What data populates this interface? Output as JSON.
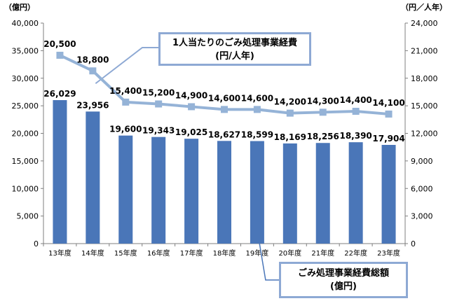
{
  "chart_data": {
    "type": "bar",
    "categories": [
      "13年度",
      "14年度",
      "15年度",
      "16年度",
      "17年度",
      "18年度",
      "19年度",
      "20年度",
      "21年度",
      "22年度",
      "23年度"
    ],
    "series": [
      {
        "name": "ごみ処理事業経費総額(億円)",
        "type": "bar",
        "axis": "left",
        "values": [
          26029,
          23956,
          19600,
          19343,
          19025,
          18627,
          18599,
          18169,
          18256,
          18390,
          17904
        ],
        "value_labels": [
          "26,029",
          "23,956",
          "19,600",
          "19,343",
          "19,025",
          "18,627",
          "18,599",
          "18,169",
          "18,256",
          "18,390",
          "17,904"
        ],
        "color": "#4A76B8"
      },
      {
        "name": "1人当たりのごみ処理事業経費(円/人年)",
        "type": "line",
        "axis": "right",
        "values": [
          20500,
          18800,
          15400,
          15200,
          14900,
          14600,
          14600,
          14200,
          14300,
          14400,
          14100
        ],
        "value_labels": [
          "20,500",
          "18,800",
          "15,400",
          "15,200",
          "14,900",
          "14,600",
          "14,600",
          "14,200",
          "14,300",
          "14,400",
          "14,100"
        ],
        "color": "#95B3D7"
      }
    ],
    "y_left": {
      "unit": "（億円）",
      "ylim": [
        0,
        40000
      ],
      "ticks": [
        0,
        5000,
        10000,
        15000,
        20000,
        25000,
        30000,
        35000,
        40000
      ],
      "tick_labels": [
        "0",
        "5,000",
        "10,000",
        "15,000",
        "20,000",
        "25,000",
        "30,000",
        "35,000",
        "40,000"
      ]
    },
    "y_right": {
      "unit": "（円／人年）",
      "ylim": [
        0,
        24000
      ],
      "ticks": [
        0,
        3000,
        6000,
        9000,
        12000,
        15000,
        18000,
        21000,
        24000
      ],
      "tick_labels": [
        "0",
        "3,000",
        "6,000",
        "9,000",
        "12,000",
        "15,000",
        "18,000",
        "21,000",
        "24,000"
      ]
    },
    "grid": false,
    "legend": "callouts"
  },
  "callouts": {
    "line": {
      "line1": "1人当たりのごみ処理事業経費",
      "line2": "(円/人年)"
    },
    "bar": {
      "line1": "ごみ処理事業経費総額",
      "line2": "(億円)"
    }
  },
  "colors": {
    "bar": "#4A76B8",
    "line": "#95B3D7",
    "callout_border": "#8EA9D4",
    "axis": "#7F7F7F"
  }
}
